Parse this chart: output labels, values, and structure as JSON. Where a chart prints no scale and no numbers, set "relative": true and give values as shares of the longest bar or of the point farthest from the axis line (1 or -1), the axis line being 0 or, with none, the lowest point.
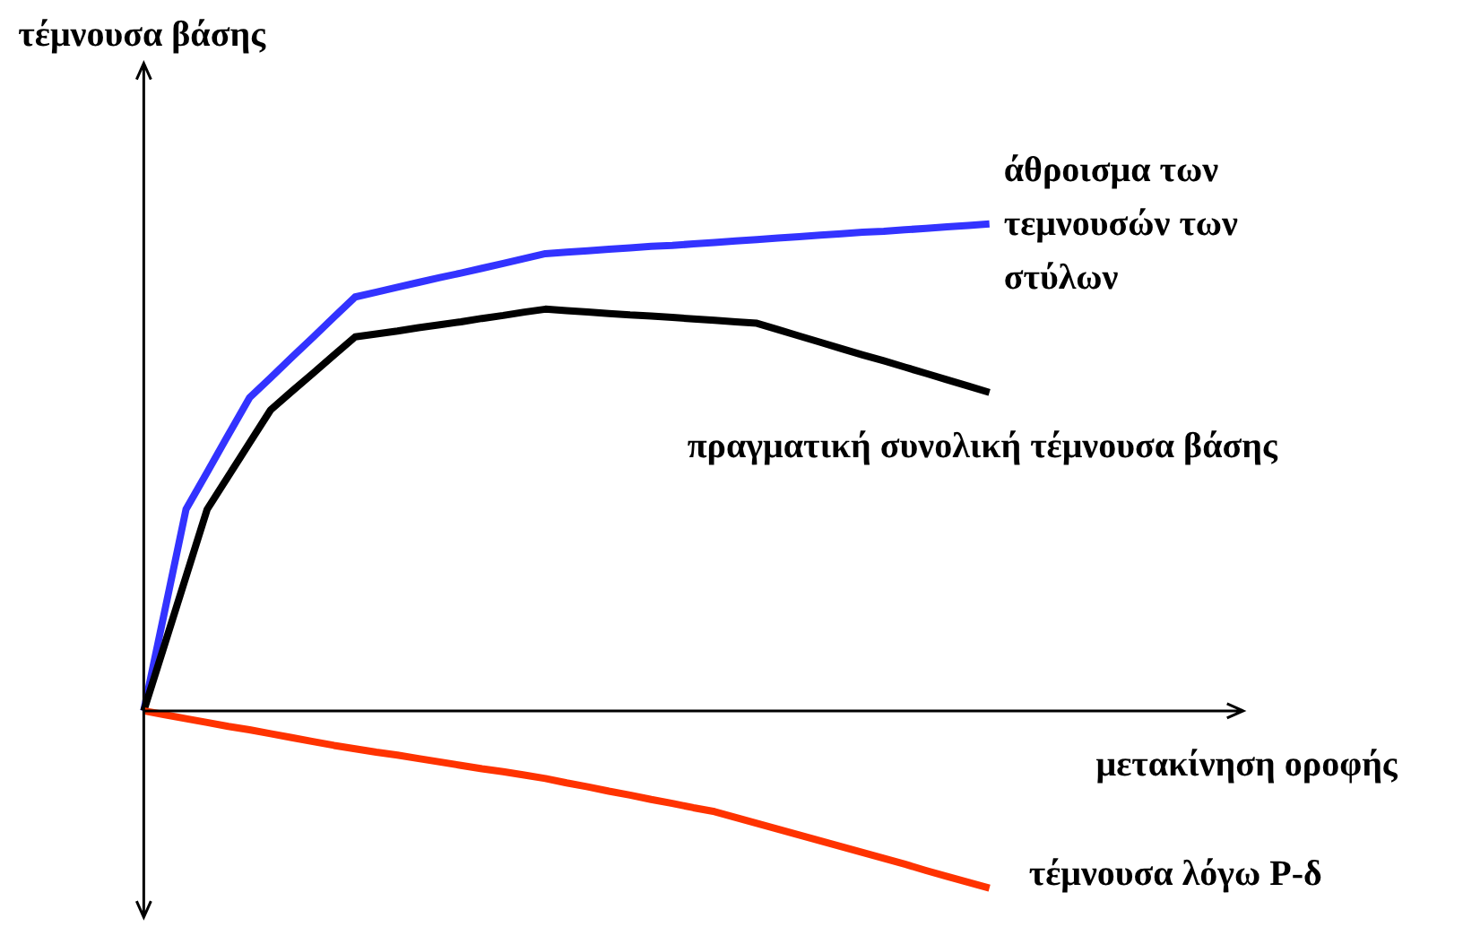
{
  "chart_data": {
    "type": "line",
    "relative": true,
    "xlabel": "μετακίνηση οροφής",
    "ylabel": "τέμνουσα βάσης",
    "marker": "none",
    "line_style": "solid",
    "categories": [
      null,
      null,
      null,
      null,
      null,
      null,
      null,
      null,
      null,
      null,
      null,
      null,
      null,
      null,
      null,
      null,
      null,
      null,
      null,
      null,
      null,
      null,
      null,
      null,
      null,
      null,
      null,
      null,
      null,
      null,
      null,
      null,
      null,
      null,
      null,
      null,
      null,
      null,
      null,
      null,
      null
    ],
    "series": [
      {
        "name": "άθροισμα των τεμνουσών των στύλων",
        "color": "#3333ff",
        "values": [
          0,
          0.207,
          0.414,
          0.49,
          0.567,
          0.643,
          0.684,
          0.726,
          0.767,
          0.809,
          0.85,
          0.86,
          0.87,
          0.88,
          0.89,
          0.899,
          0.909,
          0.919,
          0.929,
          0.939,
          0.942,
          0.945,
          0.948,
          0.951,
          0.954,
          0.956,
          0.959,
          0.962,
          0.965,
          0.968,
          0.971,
          0.974,
          0.977,
          0.98,
          0.983,
          0.985,
          0.988,
          0.991,
          0.994,
          0.997,
          1
        ]
      },
      {
        "name": "πραγματική συνολική τέμνουσα βάσης",
        "color": "#000000",
        "values": [
          0,
          0.138,
          0.276,
          0.414,
          0.482,
          0.55,
          0.618,
          0.656,
          0.693,
          0.731,
          0.768,
          0.774,
          0.78,
          0.787,
          0.793,
          0.799,
          0.806,
          0.812,
          0.819,
          0.825,
          0.822,
          0.819,
          0.816,
          0.813,
          0.811,
          0.808,
          0.805,
          0.802,
          0.799,
          0.796,
          0.783,
          0.77,
          0.757,
          0.744,
          0.731,
          0.719,
          0.706,
          0.693,
          0.68,
          0.667,
          0.654
        ]
      },
      {
        "name": "τέμνουσα λόγω P-δ",
        "color": "#ff3300",
        "values": [
          0,
          -0.008,
          -0.016,
          -0.024,
          -0.032,
          -0.039,
          -0.047,
          -0.055,
          -0.063,
          -0.071,
          -0.078,
          -0.085,
          -0.091,
          -0.098,
          -0.105,
          -0.112,
          -0.119,
          -0.125,
          -0.132,
          -0.139,
          -0.148,
          -0.156,
          -0.165,
          -0.173,
          -0.182,
          -0.19,
          -0.199,
          -0.207,
          -0.219,
          -0.231,
          -0.243,
          -0.255,
          -0.267,
          -0.279,
          -0.291,
          -0.303,
          -0.315,
          -0.328,
          -0.34,
          -0.352,
          -0.364
        ]
      }
    ]
  }
}
